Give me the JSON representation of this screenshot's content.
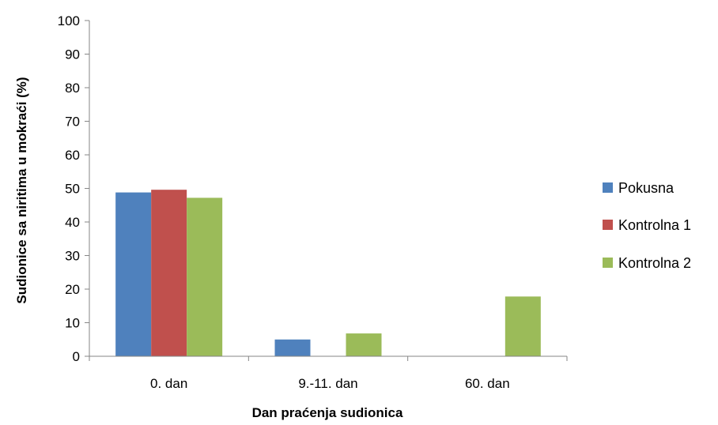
{
  "chart_data": {
    "type": "bar",
    "xlabel": "Dan praćenja sudionica",
    "ylabel": "Sudionice sa niritima u mokraći (%)",
    "categories": [
      "0. dan",
      "9.-11. dan",
      "60. dan"
    ],
    "series": [
      {
        "name": "Pokusna",
        "values": [
          48.8,
          5,
          0
        ],
        "color": "#4f81bd"
      },
      {
        "name": "Kontrolna 1",
        "values": [
          49.6,
          0,
          0
        ],
        "color": "#c0504d"
      },
      {
        "name": "Kontrolna 2",
        "values": [
          47.2,
          6.8,
          17.8
        ],
        "color": "#9bbb59"
      }
    ],
    "ylim": [
      0,
      100
    ],
    "yticks": [
      0,
      10,
      20,
      30,
      40,
      50,
      60,
      70,
      80,
      90,
      100
    ],
    "grid": false,
    "legend": "right"
  }
}
